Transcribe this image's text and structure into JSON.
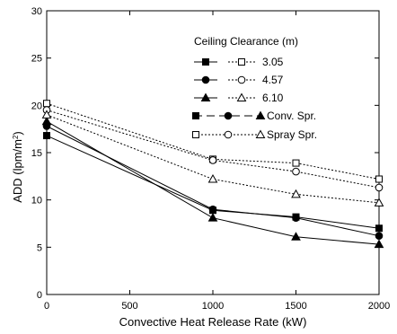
{
  "chart_data": {
    "type": "line",
    "title": "",
    "xlabel": "Convective Heat Release Rate (kW)",
    "ylabel_main": "ADD (lpm/m",
    "ylabel_sup": "2",
    "ylabel_end": ")",
    "xlim": [
      0,
      2000
    ],
    "ylim": [
      0,
      30
    ],
    "x_ticks": [
      0,
      500,
      1000,
      1500,
      2000
    ],
    "y_ticks": [
      0,
      5,
      10,
      15,
      20,
      25,
      30
    ],
    "grid": false,
    "legend_placement": "top-right",
    "legend_title": "Ceiling Clearance (m)",
    "legend_entries": [
      {
        "label": "3.05",
        "marker": "square"
      },
      {
        "label": "4.57",
        "marker": "circle"
      },
      {
        "label": "6.10",
        "marker": "triangle"
      },
      {
        "label": "Conv. Spr.",
        "kind": "conv"
      },
      {
        "label": "Spray Spr.",
        "kind": "spray"
      }
    ],
    "x": [
      0,
      1000,
      1500,
      2000
    ],
    "series": [
      {
        "type": "conv",
        "marker": "square",
        "values": [
          16.8,
          8.9,
          8.2,
          7.0
        ]
      },
      {
        "type": "conv",
        "marker": "circle",
        "values": [
          17.8,
          9.0,
          8.1,
          6.2
        ]
      },
      {
        "type": "conv",
        "marker": "triangle",
        "values": [
          18.3,
          8.1,
          6.1,
          5.3
        ]
      },
      {
        "type": "spray",
        "marker": "square",
        "values": [
          20.2,
          14.3,
          13.9,
          12.2
        ]
      },
      {
        "type": "spray",
        "marker": "circle",
        "values": [
          19.5,
          14.2,
          13.0,
          11.3
        ]
      },
      {
        "type": "spray",
        "marker": "triangle",
        "values": [
          19.0,
          12.2,
          10.6,
          9.7
        ]
      }
    ]
  }
}
